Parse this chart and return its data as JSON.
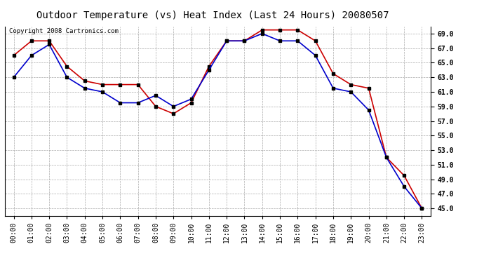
{
  "title": "Outdoor Temperature (vs) Heat Index (Last 24 Hours) 20080507",
  "copyright_text": "Copyright 2008 Cartronics.com",
  "x_labels": [
    "00:00",
    "01:00",
    "02:00",
    "03:00",
    "04:00",
    "05:00",
    "06:00",
    "07:00",
    "08:00",
    "09:00",
    "10:00",
    "11:00",
    "12:00",
    "13:00",
    "14:00",
    "15:00",
    "16:00",
    "17:00",
    "18:00",
    "19:00",
    "20:00",
    "21:00",
    "22:00",
    "23:00"
  ],
  "ylim": [
    44.0,
    70.0
  ],
  "yticks": [
    45.0,
    47.0,
    49.0,
    51.0,
    53.0,
    55.0,
    57.0,
    59.0,
    61.0,
    63.0,
    65.0,
    67.0,
    69.0
  ],
  "temp_color": "#0000CC",
  "heat_color": "#CC0000",
  "background_color": "#ffffff",
  "plot_bg_color": "#ffffff",
  "grid_color": "#aaaaaa",
  "temp_values": [
    63.0,
    66.0,
    67.5,
    63.0,
    61.5,
    61.0,
    59.5,
    59.5,
    60.5,
    59.0,
    60.0,
    64.0,
    68.0,
    68.0,
    69.0,
    68.0,
    68.0,
    66.0,
    61.5,
    61.0,
    58.5,
    52.0,
    48.0,
    45.0
  ],
  "heat_values": [
    66.0,
    68.0,
    68.0,
    64.5,
    62.5,
    62.0,
    62.0,
    62.0,
    59.0,
    58.0,
    59.5,
    64.5,
    68.0,
    68.0,
    69.5,
    69.5,
    69.5,
    68.0,
    63.5,
    62.0,
    61.5,
    52.0,
    49.5,
    45.0
  ],
  "title_fontsize": 10,
  "tick_fontsize": 7,
  "copyright_fontsize": 6.5
}
